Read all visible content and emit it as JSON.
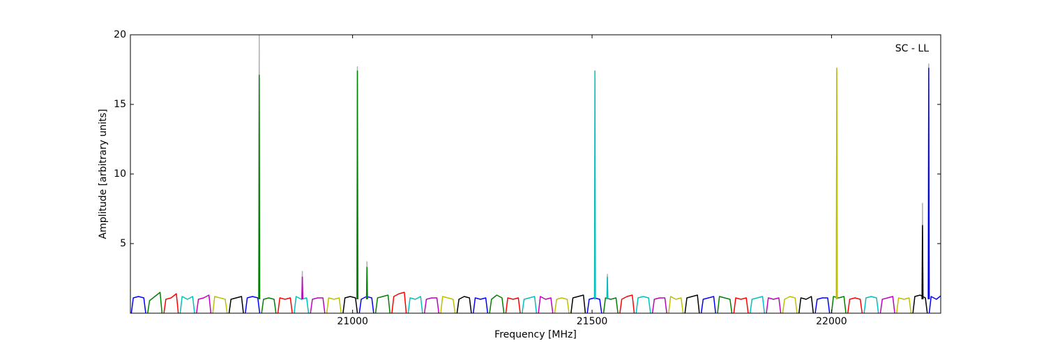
{
  "chart_data": {
    "type": "line",
    "annotation": "SC - LL",
    "xlabel": "Frequency [MHz]",
    "ylabel": "Amplitude [arbitrary units]",
    "xlim": [
      20536,
      22228
    ],
    "ylim": [
      0,
      20
    ],
    "xticks": [
      21000,
      21500,
      22000
    ],
    "yticks": [
      5,
      10,
      15,
      20
    ],
    "series": [
      {
        "color": "#0000ff",
        "x": [
          20538,
          20542,
          20553,
          20564,
          20568
        ],
        "values": [
          0,
          1.1,
          1.2,
          1.1,
          0
        ]
      },
      {
        "color": "#008000",
        "x": [
          20572,
          20576,
          20587,
          20598,
          20602
        ],
        "values": [
          0,
          0.9,
          1.2,
          1.5,
          0
        ]
      },
      {
        "color": "#ff0000",
        "x": [
          20606,
          20610,
          20621,
          20632,
          20636
        ],
        "values": [
          0,
          1.0,
          1.1,
          1.4,
          0
        ]
      },
      {
        "color": "#00bfbf",
        "x": [
          20640,
          20644,
          20655,
          20666,
          20670
        ],
        "values": [
          0,
          1.2,
          1.0,
          1.2,
          0
        ]
      },
      {
        "color": "#bf00bf",
        "x": [
          20674,
          20678,
          20689,
          20700,
          20704
        ],
        "values": [
          0,
          1.0,
          1.1,
          1.3,
          0
        ]
      },
      {
        "color": "#bfbf00",
        "x": [
          20708,
          20712,
          20723,
          20734,
          20738
        ],
        "values": [
          0,
          1.2,
          1.1,
          1.0,
          0
        ]
      },
      {
        "color": "#000000",
        "x": [
          20742,
          20746,
          20757,
          20768,
          20772
        ],
        "values": [
          0,
          1.0,
          1.1,
          1.2,
          0
        ]
      },
      {
        "color": "#0000ff",
        "x": [
          20776,
          20780,
          20791,
          20802,
          20806
        ],
        "values": [
          0,
          1.1,
          1.2,
          1.1,
          0
        ]
      },
      {
        "color": "#008000",
        "x": [
          20810,
          20814,
          20825,
          20836,
          20840
        ],
        "values": [
          0,
          1.0,
          1.1,
          1.0,
          0
        ]
      },
      {
        "color": "#ff0000",
        "x": [
          20844,
          20848,
          20859,
          20870,
          20874
        ],
        "values": [
          0,
          1.1,
          1.0,
          1.1,
          0
        ]
      },
      {
        "color": "#00bfbf",
        "x": [
          20878,
          20882,
          20893,
          20904,
          20908
        ],
        "values": [
          0,
          1.2,
          1.0,
          1.1,
          0
        ]
      },
      {
        "color": "#bf00bf",
        "x": [
          20912,
          20916,
          20927,
          20938,
          20942
        ],
        "values": [
          0,
          1.0,
          1.1,
          1.1,
          0
        ]
      },
      {
        "color": "#bfbf00",
        "x": [
          20946,
          20950,
          20961,
          20972,
          20976
        ],
        "values": [
          0,
          1.1,
          1.0,
          1.1,
          0
        ]
      },
      {
        "color": "#000000",
        "x": [
          20980,
          20984,
          20995,
          21006,
          21010
        ],
        "values": [
          0,
          1.1,
          1.2,
          1.1,
          0
        ]
      },
      {
        "color": "#0000ff",
        "x": [
          21014,
          21018,
          21029,
          21040,
          21044
        ],
        "values": [
          0,
          1.0,
          1.2,
          1.1,
          0
        ]
      },
      {
        "color": "#008000",
        "x": [
          21048,
          21052,
          21063,
          21074,
          21078
        ],
        "values": [
          0,
          1.1,
          1.2,
          1.3,
          0
        ]
      },
      {
        "color": "#ff0000",
        "x": [
          21082,
          21086,
          21097,
          21108,
          21112
        ],
        "values": [
          0,
          1.2,
          1.4,
          1.5,
          0
        ]
      },
      {
        "color": "#00bfbf",
        "x": [
          21116,
          21120,
          21131,
          21142,
          21146
        ],
        "values": [
          0,
          1.1,
          1.0,
          1.2,
          0
        ]
      },
      {
        "color": "#bf00bf",
        "x": [
          21150,
          21154,
          21165,
          21176,
          21180
        ],
        "values": [
          0,
          1.0,
          1.1,
          1.1,
          0
        ]
      },
      {
        "color": "#bfbf00",
        "x": [
          21184,
          21188,
          21199,
          21210,
          21214
        ],
        "values": [
          0,
          1.2,
          1.1,
          1.0,
          0
        ]
      },
      {
        "color": "#000000",
        "x": [
          21218,
          21222,
          21233,
          21244,
          21248
        ],
        "values": [
          0,
          1.0,
          1.2,
          1.1,
          0
        ]
      },
      {
        "color": "#0000ff",
        "x": [
          21252,
          21256,
          21267,
          21278,
          21282
        ],
        "values": [
          0,
          1.1,
          1.0,
          1.1,
          0
        ]
      },
      {
        "color": "#008000",
        "x": [
          21286,
          21290,
          21301,
          21312,
          21316
        ],
        "values": [
          0,
          1.0,
          1.3,
          1.1,
          0
        ]
      },
      {
        "color": "#ff0000",
        "x": [
          21320,
          21324,
          21335,
          21346,
          21350
        ],
        "values": [
          0,
          1.1,
          1.0,
          1.1,
          0
        ]
      },
      {
        "color": "#00bfbf",
        "x": [
          21354,
          21358,
          21369,
          21380,
          21384
        ],
        "values": [
          0,
          1.0,
          1.1,
          1.2,
          0
        ]
      },
      {
        "color": "#bf00bf",
        "x": [
          21388,
          21392,
          21403,
          21414,
          21418
        ],
        "values": [
          0,
          1.2,
          1.0,
          1.1,
          0
        ]
      },
      {
        "color": "#bfbf00",
        "x": [
          21422,
          21426,
          21437,
          21448,
          21452
        ],
        "values": [
          0,
          1.0,
          1.1,
          1.0,
          0
        ]
      },
      {
        "color": "#000000",
        "x": [
          21456,
          21460,
          21471,
          21482,
          21486
        ],
        "values": [
          0,
          1.1,
          1.2,
          1.3,
          0
        ]
      },
      {
        "color": "#0000ff",
        "x": [
          21490,
          21494,
          21505,
          21516,
          21520
        ],
        "values": [
          0,
          1.0,
          1.1,
          1.0,
          0
        ]
      },
      {
        "color": "#008000",
        "x": [
          21524,
          21528,
          21539,
          21550,
          21554
        ],
        "values": [
          0,
          1.1,
          1.0,
          1.1,
          0
        ]
      },
      {
        "color": "#ff0000",
        "x": [
          21558,
          21562,
          21573,
          21584,
          21588
        ],
        "values": [
          0,
          1.0,
          1.2,
          1.3,
          0
        ]
      },
      {
        "color": "#00bfbf",
        "x": [
          21592,
          21596,
          21607,
          21618,
          21622
        ],
        "values": [
          0,
          1.1,
          1.2,
          1.1,
          0
        ]
      },
      {
        "color": "#bf00bf",
        "x": [
          21626,
          21630,
          21641,
          21652,
          21656
        ],
        "values": [
          0,
          1.0,
          1.1,
          1.1,
          0
        ]
      },
      {
        "color": "#bfbf00",
        "x": [
          21660,
          21664,
          21675,
          21686,
          21690
        ],
        "values": [
          0,
          1.2,
          1.0,
          1.1,
          0
        ]
      },
      {
        "color": "#000000",
        "x": [
          21694,
          21698,
          21709,
          21720,
          21724
        ],
        "values": [
          0,
          1.1,
          1.2,
          1.3,
          0
        ]
      },
      {
        "color": "#0000ff",
        "x": [
          21728,
          21732,
          21743,
          21754,
          21758
        ],
        "values": [
          0,
          1.0,
          1.1,
          1.2,
          0
        ]
      },
      {
        "color": "#008000",
        "x": [
          21762,
          21766,
          21777,
          21788,
          21792
        ],
        "values": [
          0,
          1.2,
          1.1,
          1.0,
          0
        ]
      },
      {
        "color": "#ff0000",
        "x": [
          21796,
          21800,
          21811,
          21822,
          21826
        ],
        "values": [
          0,
          1.1,
          1.0,
          1.1,
          0
        ]
      },
      {
        "color": "#00bfbf",
        "x": [
          21830,
          21834,
          21845,
          21856,
          21860
        ],
        "values": [
          0,
          1.0,
          1.1,
          1.2,
          0
        ]
      },
      {
        "color": "#bf00bf",
        "x": [
          21864,
          21868,
          21879,
          21890,
          21894
        ],
        "values": [
          0,
          1.1,
          1.0,
          1.1,
          0
        ]
      },
      {
        "color": "#bfbf00",
        "x": [
          21898,
          21902,
          21913,
          21924,
          21928
        ],
        "values": [
          0,
          1.0,
          1.2,
          1.1,
          0
        ]
      },
      {
        "color": "#000000",
        "x": [
          21932,
          21936,
          21947,
          21958,
          21962
        ],
        "values": [
          0,
          1.1,
          1.0,
          1.2,
          0
        ]
      },
      {
        "color": "#0000ff",
        "x": [
          21966,
          21970,
          21981,
          21992,
          21996
        ],
        "values": [
          0,
          1.0,
          1.1,
          1.1,
          0
        ]
      },
      {
        "color": "#008000",
        "x": [
          22000,
          22004,
          22015,
          22026,
          22030
        ],
        "values": [
          0,
          1.2,
          1.1,
          1.2,
          0
        ]
      },
      {
        "color": "#ff0000",
        "x": [
          22034,
          22038,
          22049,
          22060,
          22064
        ],
        "values": [
          0,
          1.0,
          1.1,
          1.0,
          0
        ]
      },
      {
        "color": "#00bfbf",
        "x": [
          22068,
          22072,
          22083,
          22094,
          22098
        ],
        "values": [
          0,
          1.1,
          1.2,
          1.1,
          0
        ]
      },
      {
        "color": "#bf00bf",
        "x": [
          22102,
          22106,
          22117,
          22128,
          22132
        ],
        "values": [
          0,
          1.0,
          1.1,
          1.2,
          0
        ]
      },
      {
        "color": "#bfbf00",
        "x": [
          22136,
          22140,
          22151,
          22162,
          22166
        ],
        "values": [
          0,
          1.1,
          1.0,
          1.1,
          0
        ]
      },
      {
        "color": "#000000",
        "x": [
          22170,
          22174,
          22185,
          22196,
          22200
        ],
        "values": [
          0,
          1.2,
          1.3,
          1.1,
          0
        ]
      },
      {
        "color": "#0000ff",
        "x": [
          22204,
          22208,
          22219,
          22230,
          22234
        ],
        "values": [
          0,
          1.2,
          1.0,
          1.3,
          0
        ]
      },
      {
        "color": "#b0b0b0",
        "x": [
          20804,
          20805,
          20806,
          null,
          20894,
          20895,
          20896,
          null,
          21009,
          21010,
          21011,
          null,
          21029,
          21030,
          21031,
          null,
          21531,
          21532,
          21533,
          null,
          22010,
          22011,
          22012,
          null,
          22189,
          22190,
          22191,
          null,
          22202,
          22203,
          22204
        ],
        "values": [
          1,
          20,
          1,
          null,
          1,
          3.0,
          1,
          null,
          1,
          17.7,
          1,
          null,
          1,
          3.7,
          1,
          null,
          1,
          2.8,
          1,
          null,
          1,
          17.6,
          1,
          null,
          1,
          7.9,
          1,
          null,
          1,
          17.9,
          1
        ]
      },
      {
        "color": "#008000",
        "x": [
          20804,
          20805,
          20806,
          null,
          21009,
          21010,
          21011,
          null,
          21029,
          21030,
          21031
        ],
        "values": [
          1,
          17.1,
          1,
          null,
          1,
          17.4,
          1,
          null,
          1,
          3.3,
          1
        ]
      },
      {
        "color": "#bf00bf",
        "x": [
          20894,
          20895,
          20896
        ],
        "values": [
          1,
          2.6,
          1
        ]
      },
      {
        "color": "#00bfbf",
        "x": [
          21505,
          21506,
          21507,
          null,
          21531,
          21532,
          21533
        ],
        "values": [
          1,
          17.4,
          1,
          null,
          1,
          2.6,
          1
        ]
      },
      {
        "color": "#bfbf00",
        "x": [
          22010,
          22011,
          22012
        ],
        "values": [
          1,
          17.6,
          1
        ]
      },
      {
        "color": "#000000",
        "x": [
          22189,
          22190,
          22191
        ],
        "values": [
          1,
          6.3,
          1
        ]
      },
      {
        "color": "#0000ff",
        "x": [
          22202,
          22203,
          22204
        ],
        "values": [
          1,
          17.6,
          1
        ]
      }
    ]
  }
}
